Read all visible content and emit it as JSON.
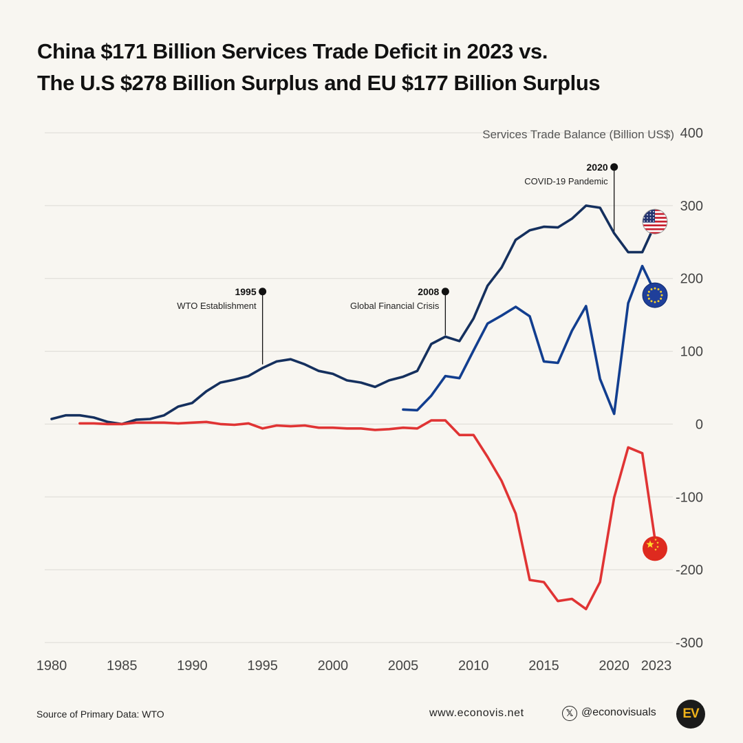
{
  "header": {
    "title_line1": "China $171 Billion Services Trade Deficit in 2023 vs.",
    "title_line2": "The U.S $278 Billion Surplus and EU $177 Billion Surplus"
  },
  "chart_data": {
    "type": "line",
    "ylabel": "Services Trade Balance (Billion US$)",
    "ylim": [
      -300,
      400
    ],
    "yticks": [
      400,
      300,
      200,
      100,
      0,
      -100,
      -200,
      -300
    ],
    "xlim": [
      1980,
      2023
    ],
    "xticks": [
      1980,
      1985,
      1990,
      1995,
      2000,
      2005,
      2010,
      2015,
      2020,
      2023
    ],
    "grid": true,
    "y_axis_side": "right",
    "series": [
      {
        "key": "us",
        "color": "#15305e",
        "marker": "us-flag",
        "x": [
          1980,
          1981,
          1982,
          1983,
          1984,
          1985,
          1986,
          1987,
          1988,
          1989,
          1990,
          1991,
          1992,
          1993,
          1994,
          1995,
          1996,
          1997,
          1998,
          1999,
          2000,
          2001,
          2002,
          2003,
          2004,
          2005,
          2006,
          2007,
          2008,
          2009,
          2010,
          2011,
          2012,
          2013,
          2014,
          2015,
          2016,
          2017,
          2018,
          2019,
          2020,
          2021,
          2022,
          2023
        ],
        "values": [
          7,
          12,
          12,
          9,
          3,
          0,
          6,
          7,
          12,
          24,
          29,
          45,
          57,
          61,
          66,
          77,
          86,
          89,
          82,
          73,
          69,
          60,
          57,
          51,
          60,
          65,
          73,
          110,
          120,
          114,
          145,
          190,
          215,
          253,
          266,
          271,
          270,
          282,
          300,
          297,
          262,
          236,
          236,
          278
        ]
      },
      {
        "key": "eu",
        "color": "#123e8f",
        "marker": "eu-flag",
        "x": [
          2005,
          2006,
          2007,
          2008,
          2009,
          2010,
          2011,
          2012,
          2013,
          2014,
          2015,
          2016,
          2017,
          2018,
          2019,
          2020,
          2021,
          2022,
          2023
        ],
        "values": [
          20,
          19,
          39,
          66,
          63,
          101,
          138,
          149,
          161,
          148,
          86,
          84,
          128,
          162,
          62,
          14,
          166,
          217,
          177
        ]
      },
      {
        "key": "china",
        "color": "#e03434",
        "marker": "china-flag",
        "x": [
          1982,
          1983,
          1984,
          1985,
          1986,
          1987,
          1988,
          1989,
          1990,
          1991,
          1992,
          1993,
          1994,
          1995,
          1996,
          1997,
          1998,
          1999,
          2000,
          2001,
          2002,
          2003,
          2004,
          2005,
          2006,
          2007,
          2008,
          2009,
          2010,
          2011,
          2012,
          2013,
          2014,
          2015,
          2016,
          2017,
          2018,
          2019,
          2020,
          2021,
          2022,
          2023
        ],
        "values": [
          1,
          1,
          0,
          0,
          2,
          2,
          2,
          1,
          2,
          3,
          0,
          -1,
          1,
          -6,
          -2,
          -3,
          -2,
          -5,
          -5,
          -6,
          -6,
          -8,
          -7,
          -5,
          -6,
          5,
          5,
          -15,
          -15,
          -45,
          -78,
          -123,
          -214,
          -217,
          -243,
          -240,
          -254,
          -217,
          -101,
          -32,
          -40,
          -171
        ]
      }
    ],
    "annotations": [
      {
        "year": "1995",
        "label": "WTO Establishment",
        "x": 1995,
        "y_anchor": 82,
        "y_dot": 182,
        "side": "left"
      },
      {
        "year": "2008",
        "label": "Global Financial Crisis",
        "x": 2008,
        "y_anchor": 122,
        "y_dot": 182,
        "side": "left"
      },
      {
        "year": "2020",
        "label": "COVID-19 Pandemic",
        "x": 2020,
        "y_anchor": 262,
        "y_dot": 353,
        "side": "left"
      }
    ]
  },
  "footer": {
    "source": "Source of Primary Data: WTO",
    "website": "www.econovis.net",
    "x_icon": "x-logo-icon",
    "handle": "@econovisuals",
    "logo_text": "EV"
  }
}
